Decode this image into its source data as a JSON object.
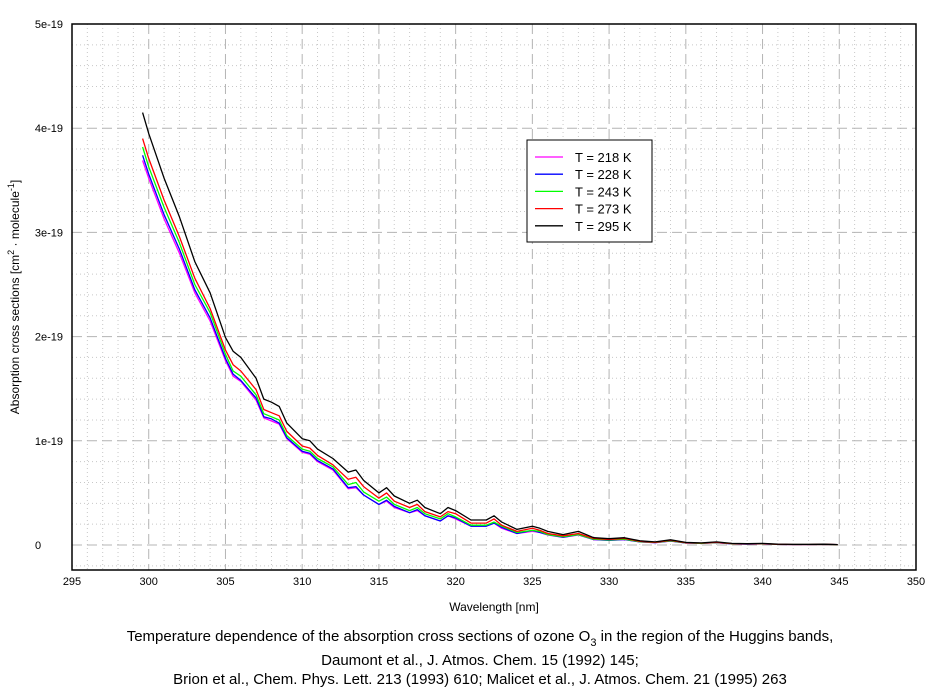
{
  "chart_data": {
    "type": "line",
    "xlabel": "Wavelength [nm]",
    "ylabel": {
      "main": "Absorption cross sections [cm",
      "sup1": "2",
      "mid": " · molecule",
      "sup2": "-1",
      "end": "]"
    },
    "xlim": [
      295,
      350
    ],
    "ylim": [
      -0.24,
      5
    ],
    "y_unit_multiplier": 1e-19,
    "x_ticks": [
      295,
      300,
      305,
      310,
      315,
      320,
      325,
      330,
      335,
      340,
      345,
      350
    ],
    "x_tick_labels": [
      "295",
      "300",
      "305",
      "310",
      "315",
      "320",
      "325",
      "330",
      "335",
      "340",
      "345",
      "350"
    ],
    "y_ticks": [
      0,
      1,
      2,
      3,
      4,
      5
    ],
    "y_tick_labels": [
      "0",
      "1e-19",
      "2e-19",
      "3e-19",
      "4e-19",
      "5e-19"
    ],
    "grid": true,
    "legend_position": "upper-center-right",
    "x": [
      299.6,
      300,
      301,
      302,
      303,
      304,
      305,
      305.5,
      306,
      307,
      307.5,
      308,
      308.5,
      309,
      310,
      310.5,
      311,
      312,
      313,
      313.5,
      314,
      315,
      315.5,
      316,
      317,
      317.5,
      318,
      319,
      319.5,
      320,
      321,
      322,
      322.5,
      323,
      324,
      325,
      325.5,
      326,
      327,
      328,
      329,
      330,
      331,
      332,
      333,
      334,
      335,
      336,
      337,
      338,
      339,
      340,
      341,
      342,
      343,
      344,
      344.9
    ],
    "series": [
      {
        "name": "T = 218 K",
        "color": "#ff00ff",
        "values": [
          3.69,
          3.52,
          3.13,
          2.8,
          2.42,
          2.15,
          1.77,
          1.62,
          1.57,
          1.39,
          1.22,
          1.19,
          1.16,
          1.02,
          0.89,
          0.87,
          0.8,
          0.72,
          0.54,
          0.55,
          0.48,
          0.39,
          0.42,
          0.36,
          0.31,
          0.33,
          0.28,
          0.23,
          0.28,
          0.25,
          0.18,
          0.18,
          0.21,
          0.16,
          0.11,
          0.13,
          0.12,
          0.096,
          0.074,
          0.096,
          0.052,
          0.044,
          0.052,
          0.03,
          0.022,
          0.037,
          0.019,
          0.015,
          0.022,
          0.011,
          0.009,
          0.011,
          0.006,
          0.004,
          0.004,
          0.006,
          0.003
        ]
      },
      {
        "name": "T = 228 K",
        "color": "#0000ff",
        "values": [
          3.74,
          3.56,
          3.17,
          2.84,
          2.45,
          2.18,
          1.79,
          1.64,
          1.58,
          1.41,
          1.23,
          1.21,
          1.17,
          1.03,
          0.9,
          0.88,
          0.81,
          0.73,
          0.55,
          0.56,
          0.48,
          0.39,
          0.43,
          0.37,
          0.31,
          0.34,
          0.28,
          0.23,
          0.28,
          0.26,
          0.18,
          0.18,
          0.21,
          0.17,
          0.11,
          0.14,
          0.12,
          0.1,
          0.075,
          0.1,
          0.053,
          0.045,
          0.053,
          0.03,
          0.023,
          0.038,
          0.019,
          0.015,
          0.023,
          0.011,
          0.009,
          0.011,
          0.006,
          0.005,
          0.005,
          0.006,
          0.003
        ]
      },
      {
        "name": "T = 243 K",
        "color": "#00ff00",
        "values": [
          3.82,
          3.63,
          3.24,
          2.9,
          2.5,
          2.23,
          1.83,
          1.67,
          1.62,
          1.44,
          1.26,
          1.23,
          1.2,
          1.05,
          0.92,
          0.9,
          0.83,
          0.75,
          0.58,
          0.6,
          0.51,
          0.42,
          0.46,
          0.39,
          0.33,
          0.36,
          0.3,
          0.25,
          0.3,
          0.27,
          0.19,
          0.19,
          0.22,
          0.18,
          0.12,
          0.14,
          0.13,
          0.1,
          0.08,
          0.1,
          0.056,
          0.048,
          0.056,
          0.032,
          0.024,
          0.04,
          0.02,
          0.016,
          0.024,
          0.012,
          0.01,
          0.012,
          0.006,
          0.005,
          0.005,
          0.006,
          0.003
        ]
      },
      {
        "name": "T = 273 K",
        "color": "#ff0000",
        "values": [
          3.9,
          3.71,
          3.31,
          2.96,
          2.56,
          2.27,
          1.87,
          1.73,
          1.67,
          1.49,
          1.3,
          1.27,
          1.24,
          1.09,
          0.95,
          0.93,
          0.86,
          0.77,
          0.63,
          0.65,
          0.56,
          0.45,
          0.5,
          0.42,
          0.36,
          0.39,
          0.32,
          0.27,
          0.32,
          0.3,
          0.21,
          0.21,
          0.25,
          0.19,
          0.13,
          0.16,
          0.14,
          0.11,
          0.088,
          0.11,
          0.062,
          0.053,
          0.062,
          0.035,
          0.026,
          0.044,
          0.022,
          0.018,
          0.026,
          0.013,
          0.011,
          0.013,
          0.007,
          0.005,
          0.005,
          0.007,
          0.0035
        ]
      },
      {
        "name": "T = 295 K",
        "color": "#000000",
        "values": [
          4.15,
          3.95,
          3.52,
          3.15,
          2.72,
          2.42,
          1.99,
          1.86,
          1.8,
          1.6,
          1.4,
          1.37,
          1.33,
          1.17,
          1.02,
          1.0,
          0.92,
          0.83,
          0.7,
          0.72,
          0.62,
          0.5,
          0.55,
          0.47,
          0.4,
          0.43,
          0.36,
          0.3,
          0.36,
          0.33,
          0.24,
          0.24,
          0.28,
          0.22,
          0.15,
          0.18,
          0.16,
          0.13,
          0.1,
          0.13,
          0.07,
          0.06,
          0.07,
          0.04,
          0.03,
          0.05,
          0.025,
          0.02,
          0.03,
          0.015,
          0.012,
          0.015,
          0.008,
          0.006,
          0.006,
          0.008,
          0.004
        ]
      }
    ],
    "caption": {
      "line1_pre": "Temperature dependence of the absorption cross sections of ozone O",
      "line1_sub": "3",
      "line1_post": " in the region of the Huggins bands,",
      "line2": "Daumont et al., J. Atmos. Chem. 15 (1992) 145;",
      "line3": "Brion et al., Chem. Phys. Lett. 213 (1993) 610; Malicet et al., J. Atmos. Chem. 21 (1995) 263"
    }
  }
}
